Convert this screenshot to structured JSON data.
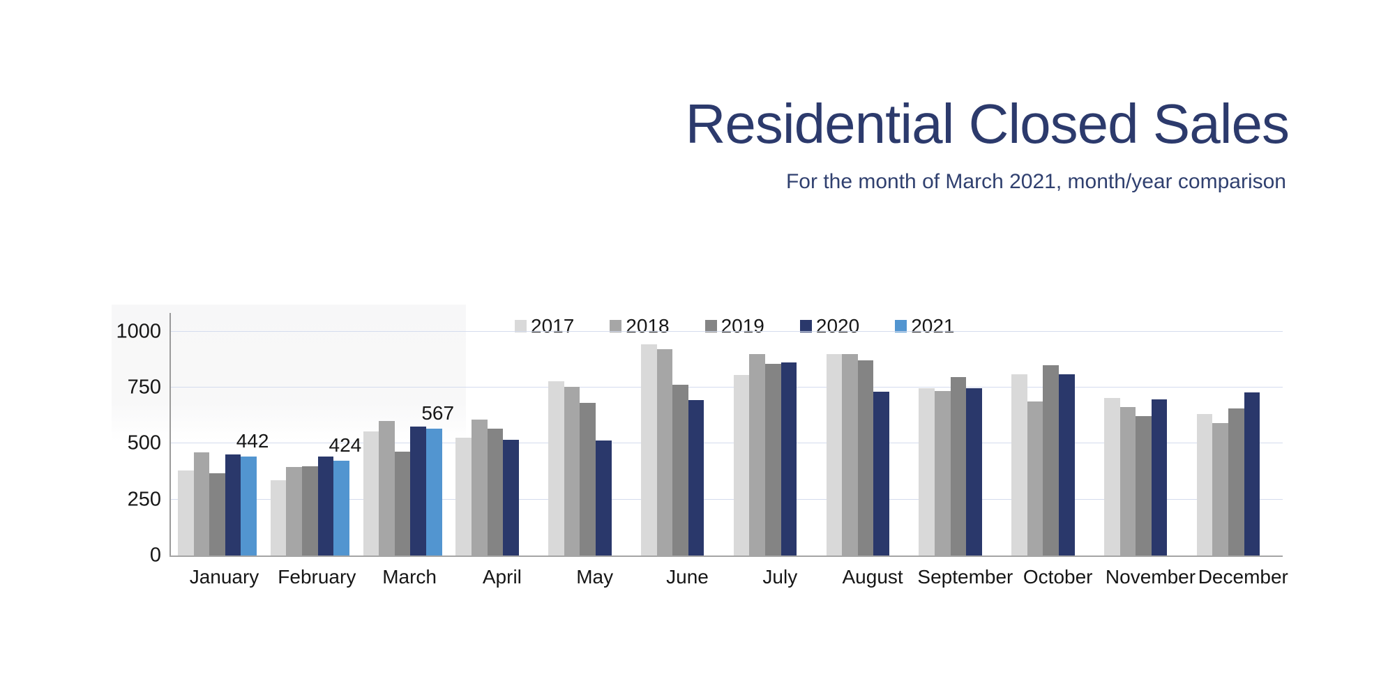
{
  "page": {
    "title": "Residential Closed Sales",
    "subtitle": "For the month of March 2021, month/year comparison"
  },
  "chart_data": {
    "type": "bar",
    "title": "Residential Closed Sales",
    "subtitle": "For the month of March 2021, month/year comparison",
    "categories": [
      "January",
      "February",
      "March",
      "April",
      "May",
      "June",
      "July",
      "August",
      "September",
      "October",
      "November",
      "December"
    ],
    "series": [
      {
        "name": "2017",
        "color": "#d9d9d9",
        "values": [
          378,
          335,
          555,
          525,
          778,
          944,
          806,
          900,
          745,
          810,
          704,
          632
        ]
      },
      {
        "name": "2018",
        "color": "#a6a6a6",
        "values": [
          460,
          394,
          600,
          607,
          753,
          922,
          899,
          900,
          735,
          686,
          664,
          590
        ]
      },
      {
        "name": "2019",
        "color": "#848484",
        "values": [
          366,
          397,
          463,
          566,
          681,
          763,
          856,
          871,
          795,
          849,
          621,
          655
        ]
      },
      {
        "name": "2020",
        "color": "#2a386b",
        "values": [
          450,
          441,
          575,
          516,
          513,
          694,
          862,
          731,
          746,
          810,
          697,
          728
        ]
      },
      {
        "name": "2021",
        "color": "#5295d0",
        "values": [
          442,
          424,
          567,
          null,
          null,
          null,
          null,
          null,
          null,
          null,
          null,
          null
        ]
      }
    ],
    "data_labels": [
      {
        "series": "2021",
        "category": "January",
        "value": 442
      },
      {
        "series": "2021",
        "category": "February",
        "value": 424
      },
      {
        "series": "2021",
        "category": "March",
        "value": 567
      }
    ],
    "yticks": [
      0,
      250,
      500,
      750,
      1000
    ],
    "ylim": [
      0,
      1107
    ],
    "xlabel": "",
    "ylabel": "",
    "grid": "horizontal",
    "legend_position": "top-center",
    "gridline_color": "#d4dcee",
    "axis_color": "#9e9e9e",
    "text_color": "#161616",
    "title_color": "#2c3a6c"
  }
}
